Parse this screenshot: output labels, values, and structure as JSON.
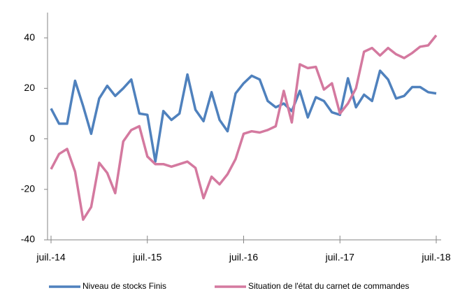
{
  "chart_data": {
    "type": "line",
    "categories": [
      "juil.-14",
      null,
      null,
      null,
      null,
      null,
      null,
      null,
      null,
      null,
      null,
      null,
      "juil.-15",
      null,
      null,
      null,
      null,
      null,
      null,
      null,
      null,
      null,
      null,
      null,
      "juil.-16",
      null,
      null,
      null,
      null,
      null,
      null,
      null,
      null,
      null,
      null,
      null,
      "juil.-17",
      null,
      null,
      null,
      null,
      null,
      null,
      null,
      null,
      null,
      null,
      null,
      "juil.-18"
    ],
    "series": [
      {
        "name": "Niveau de stocks Finis",
        "color": "#4f81bd",
        "values": [
          12,
          6,
          6,
          23,
          13,
          2,
          16,
          21,
          17,
          20,
          23.5,
          10,
          9.5,
          -9,
          11,
          7.5,
          10,
          25.5,
          11.5,
          7,
          18.5,
          7.5,
          3,
          18,
          22,
          25,
          23.5,
          15,
          12.5,
          14,
          11,
          19,
          8.5,
          16.5,
          15,
          10.5,
          9.5,
          24,
          12.5,
          17.5,
          15,
          27,
          23.5,
          16,
          17,
          20.5,
          20.5,
          18.5,
          18
        ]
      },
      {
        "name": "Situation de l'état du carnet de commandes",
        "color": "#d4799f",
        "values": [
          -12,
          -6,
          -4,
          -13,
          -32,
          -27,
          -9.5,
          -13.5,
          -21.5,
          -1,
          3.5,
          5,
          -7,
          -10,
          -10,
          -11,
          -10,
          -9,
          -11.5,
          -23.5,
          -15,
          -18,
          -14,
          -8,
          2,
          3,
          2.5,
          3.5,
          5,
          19,
          6.5,
          29.5,
          28,
          28.5,
          19.5,
          22,
          10,
          14,
          20,
          34.5,
          36,
          33,
          36,
          33.5,
          32,
          34,
          36.5,
          37,
          41
        ]
      }
    ],
    "ylim": [
      -40,
      50
    ],
    "yticks": [
      -40,
      -20,
      0,
      20,
      40
    ],
    "grid": false
  }
}
